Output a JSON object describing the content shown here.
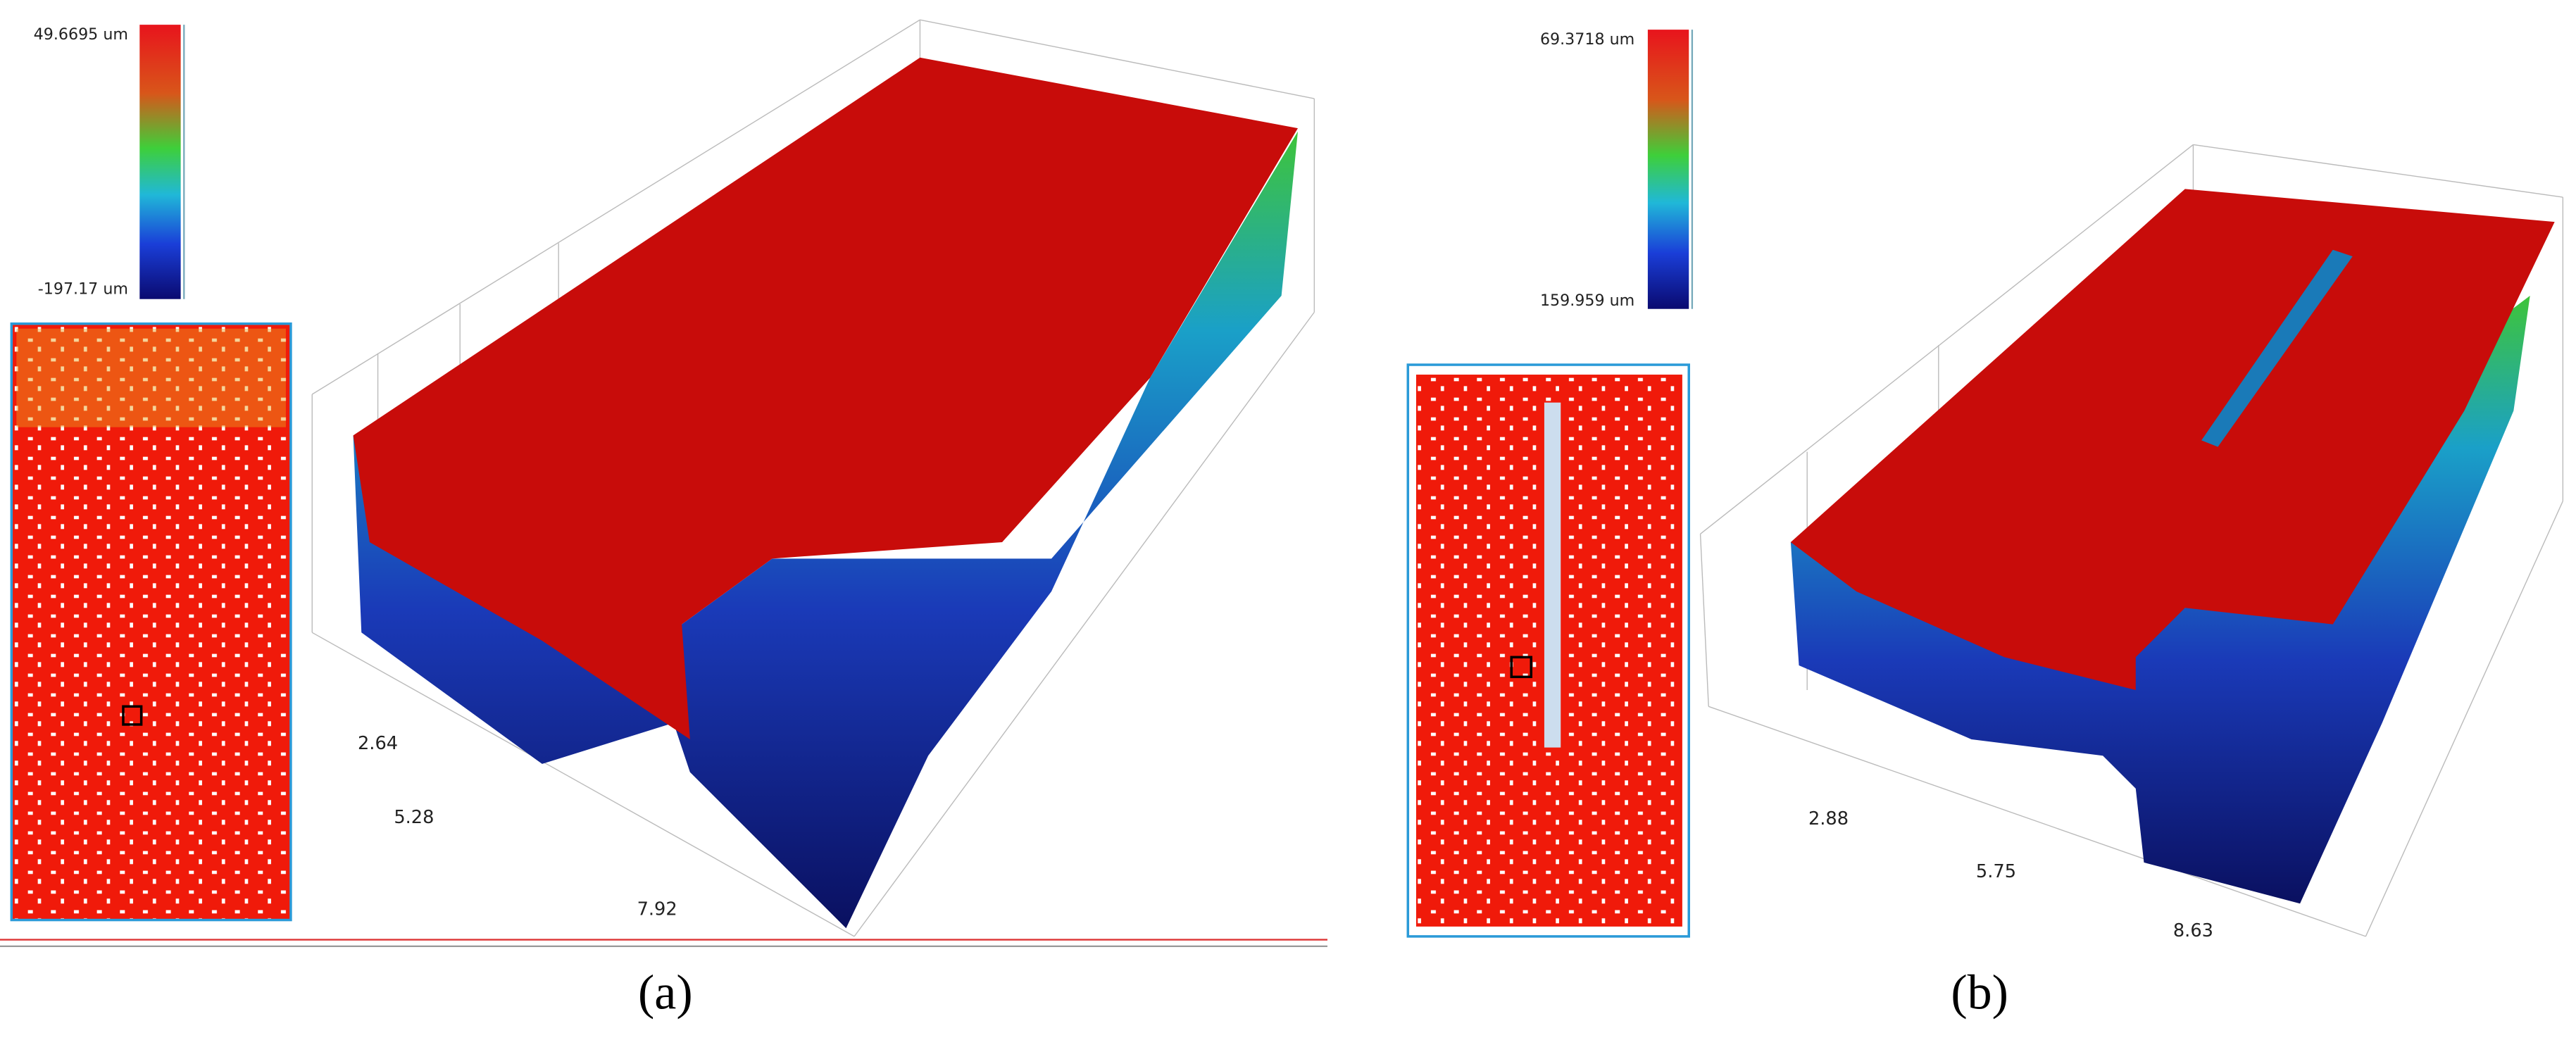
{
  "panels": [
    {
      "label": "(a)",
      "colorbar": {
        "max": "49.6695 um",
        "min": "-197.17 um"
      },
      "axis_labels": [
        "2.64",
        "5.28",
        "7.92"
      ]
    },
    {
      "label": "(b)",
      "colorbar": {
        "max": "69.3718 um",
        "min": "159.959 um"
      },
      "axis_labels": [
        "2.88",
        "5.75",
        "8.63"
      ]
    }
  ]
}
